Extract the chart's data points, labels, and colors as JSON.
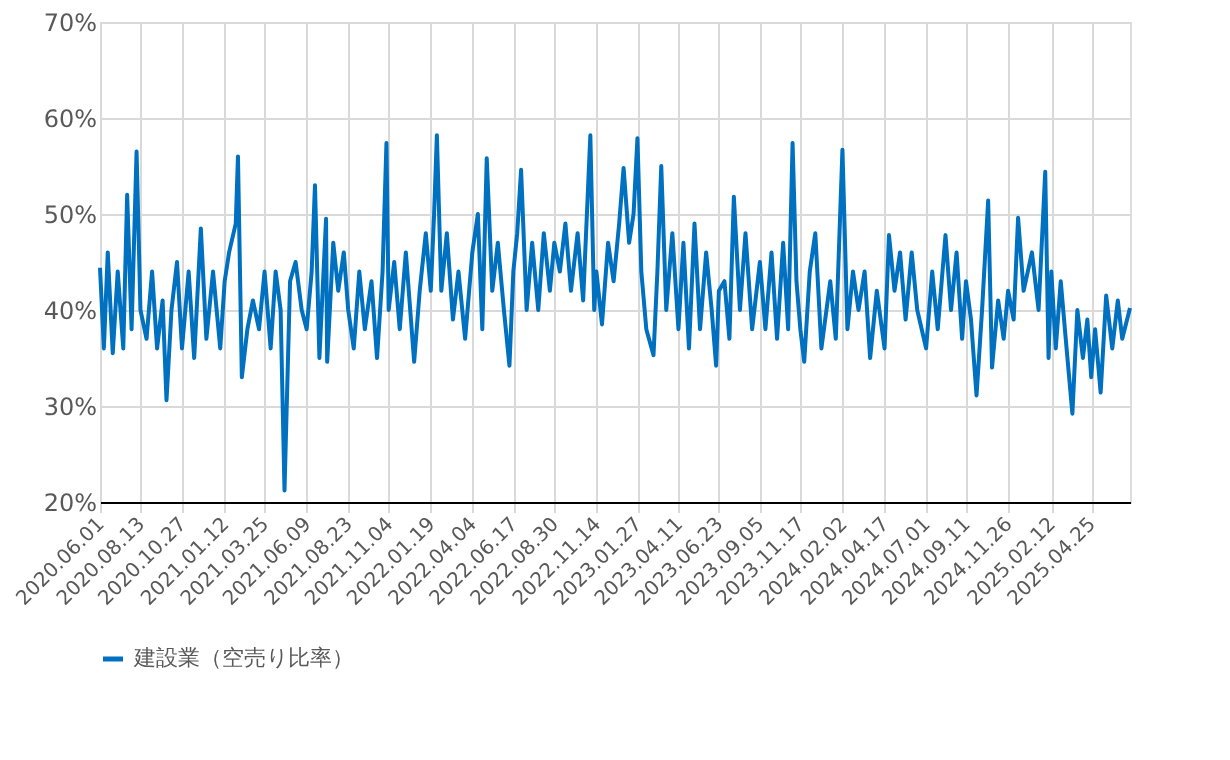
{
  "chart_data": {
    "type": "line",
    "x": [
      "2020-06-01",
      "2020-06-08",
      "2020-06-15",
      "2020-06-24",
      "2020-07-03",
      "2020-07-13",
      "2020-07-20",
      "2020-07-28",
      "2020-08-06",
      "2020-08-13",
      "2020-08-24",
      "2020-09-03",
      "2020-09-12",
      "2020-09-22",
      "2020-09-29",
      "2020-10-08",
      "2020-10-18",
      "2020-10-27",
      "2020-11-08",
      "2020-11-18",
      "2020-11-30",
      "2020-12-10",
      "2020-12-22",
      "2021-01-04",
      "2021-01-12",
      "2021-01-20",
      "2021-02-01",
      "2021-02-05",
      "2021-02-12",
      "2021-02-22",
      "2021-03-04",
      "2021-03-15",
      "2021-03-25",
      "2021-04-05",
      "2021-04-14",
      "2021-04-23",
      "2021-04-30",
      "2021-05-10",
      "2021-05-20",
      "2021-05-31",
      "2021-06-09",
      "2021-06-18",
      "2021-06-24",
      "2021-07-02",
      "2021-07-14",
      "2021-07-16",
      "2021-07-27",
      "2021-08-05",
      "2021-08-15",
      "2021-08-23",
      "2021-09-02",
      "2021-09-12",
      "2021-09-22",
      "2021-10-04",
      "2021-10-14",
      "2021-10-24",
      "2021-10-31",
      "2021-11-04",
      "2021-11-14",
      "2021-11-24",
      "2021-12-05",
      "2021-12-20",
      "2021-12-30",
      "2022-01-10",
      "2022-01-19",
      "2022-01-25",
      "2022-01-30",
      "2022-02-07",
      "2022-02-17",
      "2022-02-28",
      "2022-03-10",
      "2022-03-22",
      "2022-04-04",
      "2022-04-14",
      "2022-04-22",
      "2022-04-30",
      "2022-05-10",
      "2022-05-20",
      "2022-05-31",
      "2022-06-10",
      "2022-06-17",
      "2022-06-24",
      "2022-07-01",
      "2022-07-11",
      "2022-07-21",
      "2022-08-01",
      "2022-08-11",
      "2022-08-22",
      "2022-08-30",
      "2022-09-09",
      "2022-09-19",
      "2022-09-29",
      "2022-10-11",
      "2022-10-21",
      "2022-11-03",
      "2022-11-10",
      "2022-11-14",
      "2022-11-24",
      "2022-12-05",
      "2022-12-15",
      "2022-12-25",
      "2023-01-02",
      "2023-01-12",
      "2023-01-20",
      "2023-01-27",
      "2023-02-03",
      "2023-02-12",
      "2023-02-25",
      "2023-03-04",
      "2023-03-11",
      "2023-03-20",
      "2023-03-31",
      "2023-04-11",
      "2023-04-20",
      "2023-04-30",
      "2023-05-10",
      "2023-05-20",
      "2023-05-31",
      "2023-06-10",
      "2023-06-18",
      "2023-06-23",
      "2023-07-03",
      "2023-07-12",
      "2023-07-20",
      "2023-07-31",
      "2023-08-10",
      "2023-08-22",
      "2023-09-05",
      "2023-09-15",
      "2023-09-26",
      "2023-10-06",
      "2023-10-17",
      "2023-10-26",
      "2023-11-03",
      "2023-11-10",
      "2023-11-17",
      "2023-11-24",
      "2023-12-04",
      "2023-12-14",
      "2023-12-25",
      "2024-01-10",
      "2024-01-20",
      "2024-02-01",
      "2024-02-10",
      "2024-02-20",
      "2024-03-01",
      "2024-03-12",
      "2024-03-22",
      "2024-04-03",
      "2024-04-17",
      "2024-04-25",
      "2024-05-05",
      "2024-05-15",
      "2024-05-25",
      "2024-06-05",
      "2024-06-15",
      "2024-07-01",
      "2024-07-12",
      "2024-07-22",
      "2024-08-05",
      "2024-08-15",
      "2024-08-25",
      "2024-09-04",
      "2024-09-11",
      "2024-09-20",
      "2024-09-30",
      "2024-10-10",
      "2024-10-21",
      "2024-10-28",
      "2024-11-08",
      "2024-11-18",
      "2024-11-26",
      "2024-12-06",
      "2024-12-14",
      "2024-12-24",
      "2025-01-08",
      "2025-01-20",
      "2025-02-01",
      "2025-02-07",
      "2025-02-12",
      "2025-02-20",
      "2025-03-01",
      "2025-03-10",
      "2025-03-22",
      "2025-03-31",
      "2025-04-10",
      "2025-04-18",
      "2025-04-25",
      "2025-05-02",
      "2025-05-12",
      "2025-05-22",
      "2025-06-02",
      "2025-06-12",
      "2025-06-20",
      "2025-07-04"
    ],
    "series": [
      {
        "name": "建設業（空売り比率）",
        "color": "#0070c0",
        "values": [
          44.4,
          36,
          46,
          35.5,
          44,
          36,
          52,
          38,
          56.5,
          40,
          37,
          44,
          36,
          41,
          30.6,
          40,
          45,
          36,
          44,
          35,
          48.5,
          37,
          44,
          36,
          43,
          46,
          49,
          56,
          33,
          38,
          41,
          38,
          44,
          36,
          44,
          40,
          21.2,
          43,
          45,
          40,
          38,
          44,
          53,
          35,
          49.5,
          34.6,
          47,
          42,
          46,
          40,
          36,
          44,
          38,
          43,
          35,
          44,
          57.4,
          40,
          45,
          38,
          46,
          34.6,
          42,
          48,
          42,
          50,
          58.2,
          42,
          48,
          39,
          44,
          37,
          46,
          50,
          38,
          55.8,
          42,
          47,
          40,
          34.2,
          44,
          48,
          54.6,
          40,
          47,
          40,
          48,
          42,
          47,
          44,
          49,
          42,
          48,
          41,
          58.2,
          40,
          44,
          38.5,
          47,
          43,
          49,
          54.8,
          47,
          50,
          57.9,
          44,
          38,
          35.3,
          44,
          55,
          40,
          48,
          38,
          47,
          36,
          49,
          38,
          46,
          40,
          34.2,
          42,
          43,
          37,
          51.8,
          40,
          48,
          38,
          45,
          38,
          46,
          37,
          47,
          38,
          57.4,
          43,
          38,
          34.6,
          44,
          48,
          36,
          43,
          37,
          56.7,
          38,
          44,
          40,
          44,
          35,
          42,
          36,
          47.8,
          42,
          46,
          39,
          46,
          40,
          36,
          44,
          38,
          47.8,
          40,
          46,
          37,
          43,
          39,
          31.1,
          40,
          51.4,
          34,
          41,
          37,
          42,
          39,
          49.6,
          42,
          46,
          40,
          54.4,
          35,
          44,
          36,
          43,
          37,
          29.2,
          40,
          35,
          39,
          33,
          38,
          31.4,
          41.5,
          36,
          41,
          37,
          40.2
        ]
      }
    ],
    "xlim": [
      "2020-06-01",
      "2025-07-04"
    ],
    "xticks": [
      {
        "value": "2020-06-01",
        "label": "2020.06.01"
      },
      {
        "value": "2020-08-13",
        "label": "2020.08.13"
      },
      {
        "value": "2020-10-27",
        "label": "2020.10.27"
      },
      {
        "value": "2021-01-12",
        "label": "2021.01.12"
      },
      {
        "value": "2021-03-25",
        "label": "2021.03.25"
      },
      {
        "value": "2021-06-09",
        "label": "2021.06.09"
      },
      {
        "value": "2021-08-23",
        "label": "2021.08.23"
      },
      {
        "value": "2021-11-04",
        "label": "2021.11.04"
      },
      {
        "value": "2022-01-19",
        "label": "2022.01.19"
      },
      {
        "value": "2022-04-04",
        "label": "2022.04.04"
      },
      {
        "value": "2022-06-17",
        "label": "2022.06.17"
      },
      {
        "value": "2022-08-30",
        "label": "2022.08.30"
      },
      {
        "value": "2022-11-14",
        "label": "2022.11.14"
      },
      {
        "value": "2023-01-27",
        "label": "2023.01.27"
      },
      {
        "value": "2023-04-11",
        "label": "2023.04.11"
      },
      {
        "value": "2023-06-23",
        "label": "2023.06.23"
      },
      {
        "value": "2023-09-05",
        "label": "2023.09.05"
      },
      {
        "value": "2023-11-17",
        "label": "2023.11.17"
      },
      {
        "value": "2024-02-02",
        "label": "2024.02.02"
      },
      {
        "value": "2024-04-17",
        "label": "2024.04.17"
      },
      {
        "value": "2024-07-01",
        "label": "2024.07.01"
      },
      {
        "value": "2024-09-11",
        "label": "2024.09.11"
      },
      {
        "value": "2024-11-26",
        "label": "2024.11.26"
      },
      {
        "value": "2025-02-12",
        "label": "2025.02.12"
      },
      {
        "value": "2025-04-25",
        "label": "2025.04.25"
      }
    ],
    "ylim": [
      20,
      70
    ],
    "yticks": [
      {
        "value": 20,
        "label": "20%"
      },
      {
        "value": 30,
        "label": "30%"
      },
      {
        "value": 40,
        "label": "40%"
      },
      {
        "value": 50,
        "label": "50%"
      },
      {
        "value": 60,
        "label": "60%"
      },
      {
        "value": 70,
        "label": "70%"
      }
    ],
    "grid": true,
    "legend": "bottom",
    "line_style": "solid"
  }
}
